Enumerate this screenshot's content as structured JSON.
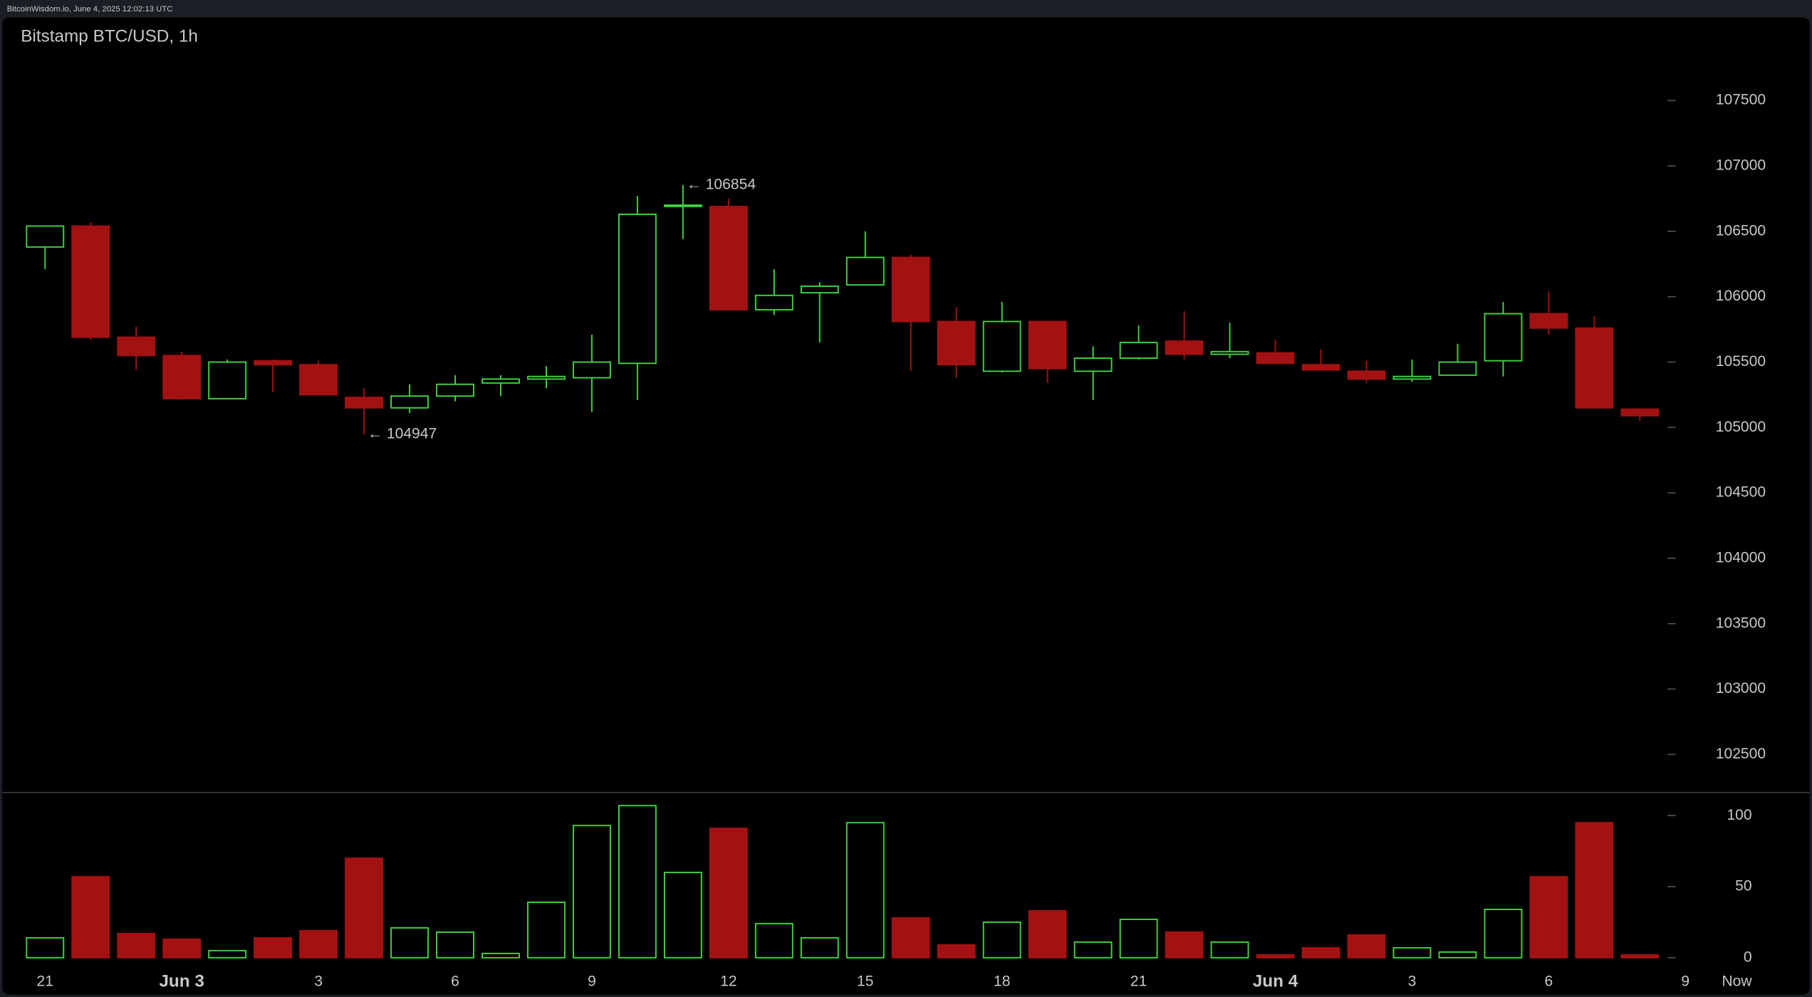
{
  "header": "BitcoinWisdom.io, June 4, 2025 12:02:13 UTC",
  "chart_data": {
    "type": "candlestick",
    "title": "Bitstamp BTC/USD, 1h",
    "open": [
      106380,
      106540,
      105690,
      105550,
      105220,
      105510,
      105480,
      105230,
      105150,
      105240,
      105340,
      105370,
      105380,
      105490,
      106690,
      106690,
      105900,
      106030,
      106090,
      106300,
      105810,
      105430,
      105810,
      105430,
      105530,
      105660,
      105560,
      105570,
      105480,
      105430,
      105370,
      105400,
      105510,
      105870,
      105760,
      105140
    ],
    "high": [
      106540,
      106570,
      105770,
      105580,
      105520,
      105520,
      105510,
      105300,
      105330,
      105400,
      105400,
      105470,
      105710,
      106770,
      106854,
      106750,
      106210,
      106110,
      106500,
      106320,
      105920,
      105960,
      105810,
      105620,
      105780,
      105890,
      105800,
      105670,
      105600,
      105510,
      105520,
      105640,
      105960,
      106040,
      105850,
      105150
    ],
    "low": [
      106210,
      105670,
      105440,
      105210,
      105220,
      105270,
      105250,
      104947,
      105110,
      105200,
      105240,
      105300,
      105120,
      105210,
      106440,
      105900,
      105860,
      105650,
      106090,
      105430,
      105380,
      105420,
      105340,
      105210,
      105520,
      105520,
      105530,
      105490,
      105440,
      105340,
      105350,
      105400,
      105390,
      105710,
      105150,
      105050
    ],
    "close": [
      106540,
      105690,
      105550,
      105220,
      105500,
      105480,
      105250,
      105150,
      105240,
      105330,
      105370,
      105390,
      105500,
      106630,
      106700,
      105900,
      106010,
      106080,
      106300,
      105810,
      105480,
      105810,
      105450,
      105530,
      105650,
      105560,
      105580,
      105490,
      105440,
      105370,
      105390,
      105500,
      105870,
      105760,
      105150,
      105090
    ],
    "volume": [
      14,
      57,
      17,
      13,
      5,
      14,
      19,
      70,
      21,
      18,
      3,
      39,
      93,
      107,
      60,
      91,
      24,
      14,
      95,
      28,
      9,
      25,
      33,
      11,
      27,
      18,
      11,
      2,
      7,
      16,
      7,
      4,
      34,
      57,
      95,
      2
    ],
    "up_color": "#3fd23f",
    "down_color": "#a31212",
    "ylim": [
      102200,
      108000
    ],
    "yticks": [
      102500,
      103000,
      103500,
      104000,
      104500,
      105000,
      105500,
      106000,
      106500,
      107000,
      107500
    ],
    "volume_lim": [
      0,
      115
    ],
    "volume_ticks": [
      0,
      50,
      100
    ],
    "xticks": [
      {
        "value": 0,
        "label": "21"
      },
      {
        "value": 3,
        "label": "Jun 3"
      },
      {
        "value": 6,
        "label": "3"
      },
      {
        "value": 9,
        "label": "6"
      },
      {
        "value": 12,
        "label": "9"
      },
      {
        "value": 15,
        "label": "12"
      },
      {
        "value": 18,
        "label": "15"
      },
      {
        "value": 21,
        "label": "18"
      },
      {
        "value": 24,
        "label": "21"
      },
      {
        "value": 27,
        "label": "Jun 4"
      },
      {
        "value": 30,
        "label": "3"
      },
      {
        "value": 33,
        "label": "6"
      },
      {
        "value": 36,
        "label": "9"
      }
    ],
    "now_label": "Now",
    "annotations": [
      {
        "label": "← 106854",
        "value": 106854
      },
      {
        "label": "← 104947",
        "value": 104947
      }
    ]
  }
}
